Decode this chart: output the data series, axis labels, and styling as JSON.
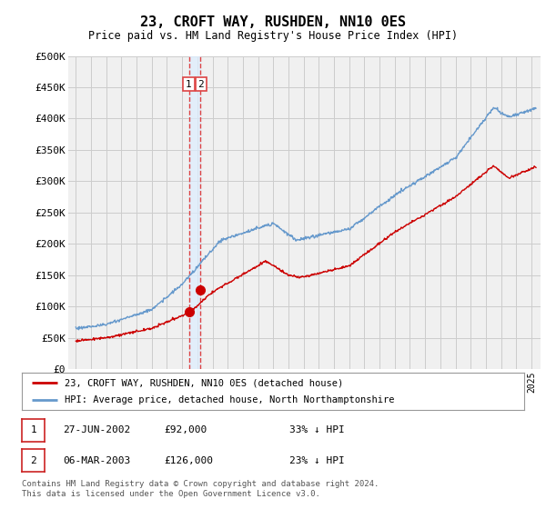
{
  "title": "23, CROFT WAY, RUSHDEN, NN10 0ES",
  "subtitle": "Price paid vs. HM Land Registry's House Price Index (HPI)",
  "ylim": [
    0,
    500000
  ],
  "yticks": [
    0,
    50000,
    100000,
    150000,
    200000,
    250000,
    300000,
    350000,
    400000,
    450000,
    500000
  ],
  "ytick_labels": [
    "£0",
    "£50K",
    "£100K",
    "£150K",
    "£200K",
    "£250K",
    "£300K",
    "£350K",
    "£400K",
    "£450K",
    "£500K"
  ],
  "red_color": "#cc0000",
  "blue_color": "#6699cc",
  "purchase1_date": 2002.49,
  "purchase1_price": 92000,
  "purchase2_date": 2003.18,
  "purchase2_price": 126000,
  "legend_line1": "23, CROFT WAY, RUSHDEN, NN10 0ES (detached house)",
  "legend_line2": "HPI: Average price, detached house, North Northamptonshire",
  "table_row1": [
    "1",
    "27-JUN-2002",
    "£92,000",
    "33% ↓ HPI"
  ],
  "table_row2": [
    "2",
    "06-MAR-2003",
    "£126,000",
    "23% ↓ HPI"
  ],
  "footnote": "Contains HM Land Registry data © Crown copyright and database right 2024.\nThis data is licensed under the Open Government Licence v3.0.",
  "background_color": "#f0f0f0",
  "grid_color": "#cccccc",
  "vline_color": "#dd4444",
  "shade_color": "#ddeeff"
}
